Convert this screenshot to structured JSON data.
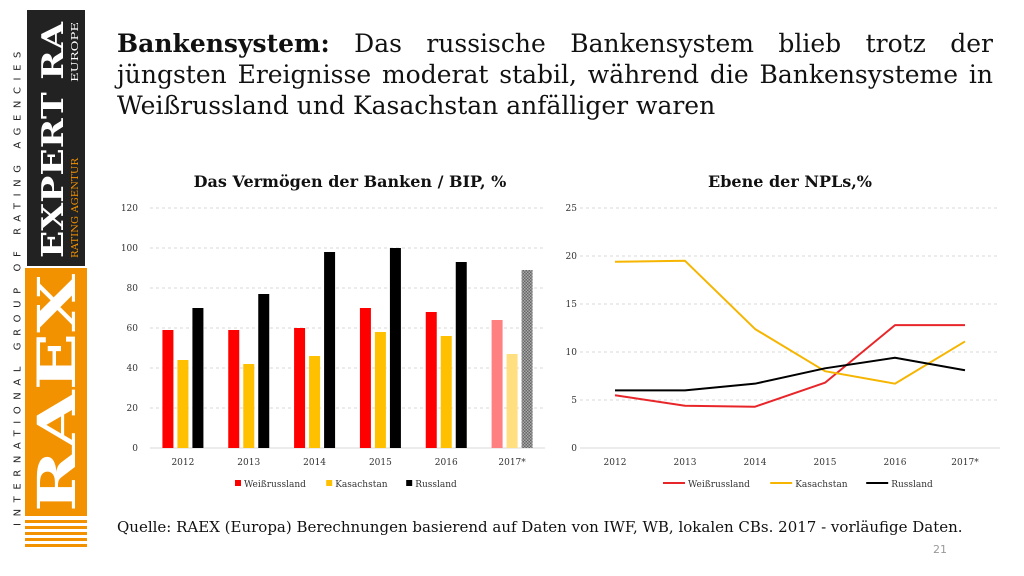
{
  "sidebar": {
    "text": "INTERNATIONAL GROUP OF RATING AGENCIES",
    "logo_main": "RAEX",
    "logo_expert": "EXPERT RA",
    "logo_rating_agentur": "RATING AGENTUR",
    "logo_europe": "EUROPE"
  },
  "headline": {
    "bold": "Bankensystem:",
    "rest": " Das russische Bankensystem blieb trotz der jüngsten Ereignisse moderat stabil, während die Bankensysteme in Weißrussland und Kasachstan anfälliger waren"
  },
  "source": "Quelle: RAEX (Europa) Berechnungen basierend auf Daten von IWF, WB, lokalen CBs. 2017 - vorläufige Daten.",
  "page_number": "21",
  "colors": {
    "belarus": "#ff0000",
    "kazakhstan": "#ffc000",
    "russia": "#000000",
    "belarus_line": "#e8262a",
    "kazakhstan_line": "#f5b500",
    "belarus_2017": "#ff8080",
    "kazakhstan_2017": "#ffdf80",
    "grid": "#d9d9d9",
    "accent_orange": "#f39200"
  },
  "chart_data": [
    {
      "type": "bar",
      "title": "Das Vermögen der Banken / BIP, %",
      "categories": [
        "2012",
        "2013",
        "2014",
        "2015",
        "2016",
        "2017*"
      ],
      "series": [
        {
          "name": "Weißrussland",
          "values": [
            59,
            59,
            60,
            70,
            68,
            64
          ]
        },
        {
          "name": "Kasachstan",
          "values": [
            44,
            42,
            46,
            58,
            56,
            47
          ]
        },
        {
          "name": "Russland",
          "values": [
            70,
            77,
            98,
            100,
            93,
            89
          ]
        }
      ],
      "ylim": [
        0,
        120
      ],
      "yticks": [
        "0",
        "20",
        "40",
        "60",
        "80",
        "100",
        "120"
      ],
      "grid": true,
      "legend_position": "bottom"
    },
    {
      "type": "line",
      "title": "Ebene der NPLs,%",
      "categories": [
        "2012",
        "2013",
        "2014",
        "2015",
        "2016",
        "2017*"
      ],
      "series": [
        {
          "name": "Weißrussland",
          "values": [
            5.5,
            4.4,
            4.3,
            6.8,
            12.8,
            12.8
          ]
        },
        {
          "name": "Kasachstan",
          "values": [
            19.4,
            19.5,
            12.4,
            8.0,
            6.7,
            11.1
          ]
        },
        {
          "name": "Russland",
          "values": [
            6.0,
            6.0,
            6.7,
            8.3,
            9.4,
            8.1
          ]
        }
      ],
      "ylim": [
        0,
        25
      ],
      "yticks": [
        "0",
        "5",
        "10",
        "15",
        "20",
        "25"
      ],
      "grid": true,
      "legend_position": "bottom"
    }
  ]
}
